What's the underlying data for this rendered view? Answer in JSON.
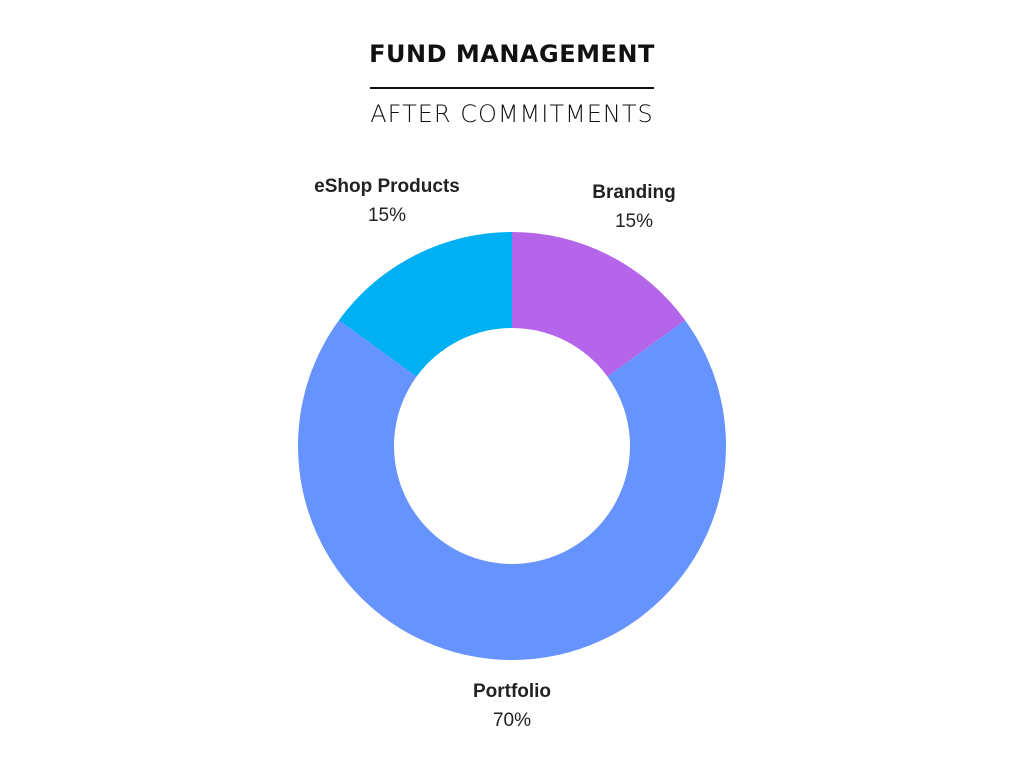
{
  "chart_data": {
    "type": "pie",
    "title": "FUND MANAGEMENT",
    "subtitle": "AFTER COMMITMENTS",
    "style": "donut",
    "slices": [
      {
        "label": "Branding",
        "value": 15,
        "value_label": "15%",
        "color": "#b565ea"
      },
      {
        "label": "Portfolio",
        "value": 70,
        "value_label": "70%",
        "color": "#6693fd"
      },
      {
        "label": "eShop Products",
        "value": 15,
        "value_label": "15%",
        "color": "#01b0f2"
      }
    ]
  }
}
